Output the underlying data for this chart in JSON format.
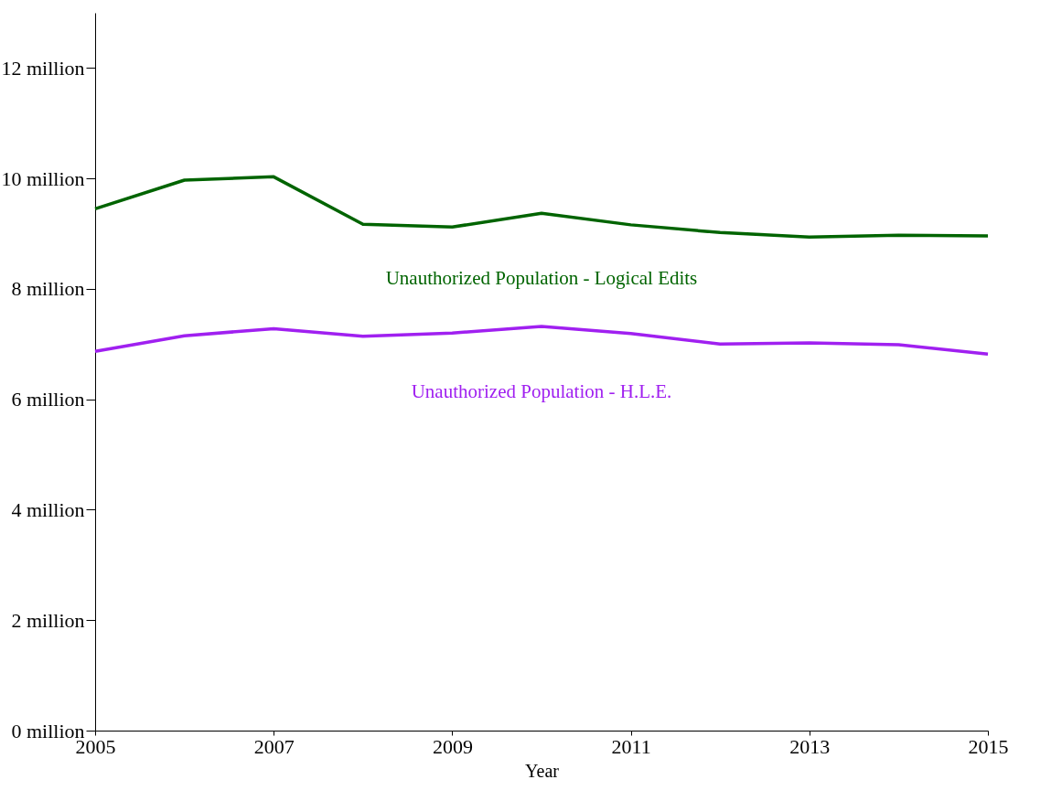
{
  "chart_data": {
    "type": "line",
    "xlabel": "Year",
    "x": [
      2005,
      2006,
      2007,
      2008,
      2009,
      2010,
      2011,
      2012,
      2013,
      2014,
      2015
    ],
    "series": [
      {
        "name": "Unauthorized Population - Logical Edits",
        "color": "#006400",
        "values": [
          9.45,
          9.97,
          10.03,
          9.17,
          9.12,
          9.37,
          9.16,
          9.02,
          8.94,
          8.97,
          8.96
        ]
      },
      {
        "name": "Unauthorized Population - H.L.E.",
        "color": "#a020f0",
        "values": [
          6.87,
          7.15,
          7.28,
          7.14,
          7.2,
          7.32,
          7.19,
          7.0,
          7.02,
          6.99,
          6.82
        ]
      }
    ],
    "xlim": [
      2005,
      2015
    ],
    "xticks": [
      2005,
      2007,
      2009,
      2011,
      2013,
      2015
    ],
    "ylim": [
      0,
      13
    ],
    "yticks": [
      {
        "value": 0,
        "label": "0 million"
      },
      {
        "value": 2,
        "label": "2 million"
      },
      {
        "value": 4,
        "label": "4 million"
      },
      {
        "value": 6,
        "label": "6 million"
      },
      {
        "value": 8,
        "label": "8 million"
      },
      {
        "value": 10,
        "label": "10 million"
      },
      {
        "value": 12,
        "label": "12 million"
      }
    ],
    "grid": false,
    "legend": false,
    "marker": "none",
    "line_style": "solid"
  }
}
